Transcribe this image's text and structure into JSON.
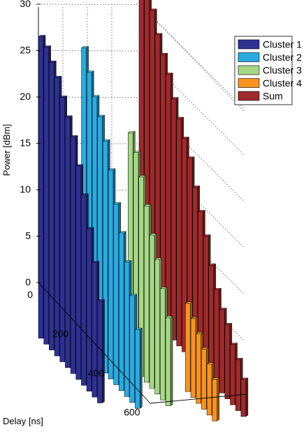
{
  "chart_data": {
    "type": "bar",
    "view": "3d",
    "title": "",
    "ylabel": "Power [dBm]",
    "xlabel": "Delay [ns]",
    "zlim": [
      0,
      30
    ],
    "z_ticks": [
      0,
      5,
      10,
      15,
      20,
      25,
      30
    ],
    "delay_ticks": [
      0,
      200,
      400,
      600
    ],
    "grid": true,
    "legend_position": "top-right",
    "series": [
      {
        "name": "Cluster 1",
        "color": "#2E3192",
        "points": [
          {
            "delay": 0,
            "power": 26.5
          },
          {
            "delay": 30,
            "power": 26
          },
          {
            "delay": 60,
            "power": 25
          },
          {
            "delay": 90,
            "power": 24
          },
          {
            "delay": 120,
            "power": 22.5
          },
          {
            "delay": 150,
            "power": 21
          },
          {
            "delay": 180,
            "power": 19.5
          },
          {
            "delay": 210,
            "power": 17
          },
          {
            "delay": 240,
            "power": 14.5
          },
          {
            "delay": 270,
            "power": 11.5
          },
          {
            "delay": 300,
            "power": 8.5
          },
          {
            "delay": 330,
            "power": 5
          }
        ]
      },
      {
        "name": "Cluster 2",
        "color": "#29ABE2",
        "points": [
          {
            "delay": 100,
            "power": 26.5
          },
          {
            "delay": 130,
            "power": 24.5
          },
          {
            "delay": 160,
            "power": 22.5
          },
          {
            "delay": 190,
            "power": 21
          },
          {
            "delay": 220,
            "power": 19
          },
          {
            "delay": 250,
            "power": 16.5
          },
          {
            "delay": 280,
            "power": 13.5
          },
          {
            "delay": 310,
            "power": 11
          },
          {
            "delay": 340,
            "power": 8.5
          },
          {
            "delay": 370,
            "power": 5.5
          },
          {
            "delay": 400,
            "power": 2.5
          }
        ]
      },
      {
        "name": "Cluster 3",
        "color": "#A6D785",
        "points": [
          {
            "delay": 220,
            "power": 19
          },
          {
            "delay": 250,
            "power": 17.5
          },
          {
            "delay": 280,
            "power": 15.5
          },
          {
            "delay": 310,
            "power": 13
          },
          {
            "delay": 340,
            "power": 10.5
          },
          {
            "delay": 370,
            "power": 8.5
          },
          {
            "delay": 400,
            "power": 6
          },
          {
            "delay": 430,
            "power": 3.5
          }
        ]
      },
      {
        "name": "Cluster 4",
        "color": "#F7931E",
        "points": [
          {
            "delay": 400,
            "power": 3.5
          },
          {
            "delay": 430,
            "power": 2.5
          },
          {
            "delay": 460,
            "power": 1.5
          },
          {
            "delay": 490,
            "power": 0.5
          },
          {
            "delay": 520,
            "power": -0.5
          },
          {
            "delay": 550,
            "power": -1.5
          }
        ]
      },
      {
        "name": "Sum",
        "color": "#9E2A2B",
        "points": [
          {
            "delay": 0,
            "power": 29.5
          },
          {
            "delay": 30,
            "power": 28.5
          },
          {
            "delay": 60,
            "power": 27
          },
          {
            "delay": 90,
            "power": 25
          },
          {
            "delay": 120,
            "power": 23.5
          },
          {
            "delay": 150,
            "power": 22
          },
          {
            "delay": 180,
            "power": 20
          },
          {
            "delay": 210,
            "power": 18.5
          },
          {
            "delay": 240,
            "power": 17
          },
          {
            "delay": 270,
            "power": 15.5
          },
          {
            "delay": 300,
            "power": 13
          },
          {
            "delay": 330,
            "power": 11
          },
          {
            "delay": 360,
            "power": 9
          },
          {
            "delay": 390,
            "power": 6.5
          },
          {
            "delay": 420,
            "power": 4.5
          },
          {
            "delay": 450,
            "power": 3
          },
          {
            "delay": 480,
            "power": 2
          },
          {
            "delay": 510,
            "power": 0.5
          },
          {
            "delay": 540,
            "power": -0.5
          },
          {
            "delay": 570,
            "power": -2
          }
        ]
      }
    ]
  }
}
